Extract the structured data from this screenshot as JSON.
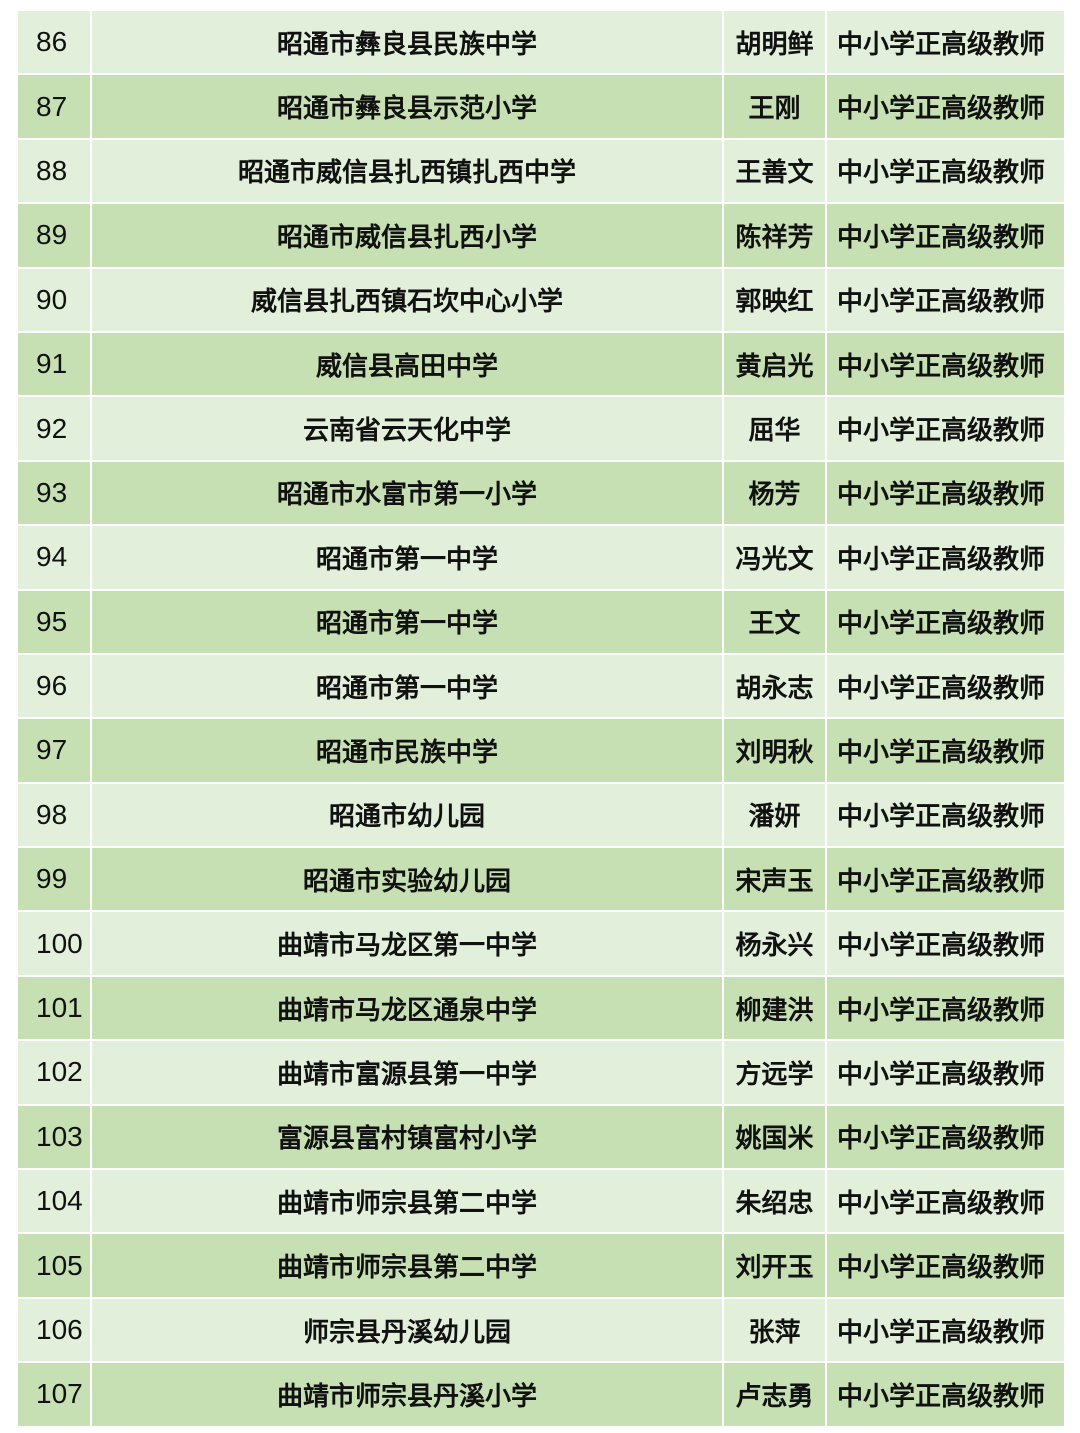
{
  "colors": {
    "row_light": "#e2efda",
    "row_dark": "#c6e0b4"
  },
  "rows": [
    {
      "no": "86",
      "school": "昭通市彝良县民族中学",
      "name": "胡明鲜",
      "title": "中小学正高级教师"
    },
    {
      "no": "87",
      "school": "昭通市彝良县示范小学",
      "name": "王刚",
      "title": "中小学正高级教师"
    },
    {
      "no": "88",
      "school": "昭通市威信县扎西镇扎西中学",
      "name": "王善文",
      "title": "中小学正高级教师"
    },
    {
      "no": "89",
      "school": "昭通市威信县扎西小学",
      "name": "陈祥芳",
      "title": "中小学正高级教师"
    },
    {
      "no": "90",
      "school": "威信县扎西镇石坎中心小学",
      "name": "郭映红",
      "title": "中小学正高级教师"
    },
    {
      "no": "91",
      "school": "威信县高田中学",
      "name": "黄启光",
      "title": "中小学正高级教师"
    },
    {
      "no": "92",
      "school": "云南省云天化中学",
      "name": "屈华",
      "title": "中小学正高级教师"
    },
    {
      "no": "93",
      "school": "昭通市水富市第一小学",
      "name": "杨芳",
      "title": "中小学正高级教师"
    },
    {
      "no": "94",
      "school": "昭通市第一中学",
      "name": "冯光文",
      "title": "中小学正高级教师"
    },
    {
      "no": "95",
      "school": "昭通市第一中学",
      "name": "王文",
      "title": "中小学正高级教师"
    },
    {
      "no": "96",
      "school": "昭通市第一中学",
      "name": "胡永志",
      "title": "中小学正高级教师"
    },
    {
      "no": "97",
      "school": "昭通市民族中学",
      "name": "刘明秋",
      "title": "中小学正高级教师"
    },
    {
      "no": "98",
      "school": "昭通市幼儿园",
      "name": "潘妍",
      "title": "中小学正高级教师"
    },
    {
      "no": "99",
      "school": "昭通市实验幼儿园",
      "name": "宋声玉",
      "title": "中小学正高级教师"
    },
    {
      "no": "100",
      "school": "曲靖市马龙区第一中学",
      "name": "杨永兴",
      "title": "中小学正高级教师"
    },
    {
      "no": "101",
      "school": "曲靖市马龙区通泉中学",
      "name": "柳建洪",
      "title": "中小学正高级教师"
    },
    {
      "no": "102",
      "school": "曲靖市富源县第一中学",
      "name": "方远学",
      "title": "中小学正高级教师"
    },
    {
      "no": "103",
      "school": "富源县富村镇富村小学",
      "name": "姚国米",
      "title": "中小学正高级教师"
    },
    {
      "no": "104",
      "school": "曲靖市师宗县第二中学",
      "name": "朱绍忠",
      "title": "中小学正高级教师"
    },
    {
      "no": "105",
      "school": "曲靖市师宗县第二中学",
      "name": "刘开玉",
      "title": "中小学正高级教师"
    },
    {
      "no": "106",
      "school": "师宗县丹溪幼儿园",
      "name": "张萍",
      "title": "中小学正高级教师"
    },
    {
      "no": "107",
      "school": "曲靖市师宗县丹溪小学",
      "name": "卢志勇",
      "title": "中小学正高级教师"
    }
  ]
}
